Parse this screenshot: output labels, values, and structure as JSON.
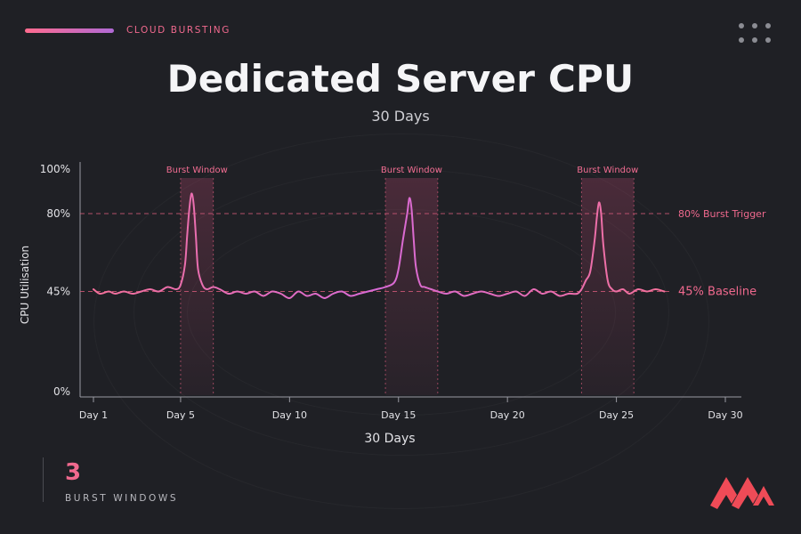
{
  "header": {
    "eyebrow": "CLOUD BURSTING",
    "title": "Dedicated Server CPU",
    "subtitle": "30 Days"
  },
  "stat": {
    "value": "3",
    "label": "BURST WINDOWS"
  },
  "colors": {
    "background": "#1f2025",
    "accent": "#f0698e",
    "accent_alt": "#b06ad6",
    "axis": "#b8b8be",
    "reference_line": "#d85b7b"
  },
  "chart_data": {
    "type": "line",
    "title": "Dedicated Server CPU",
    "subtitle": "30 Days",
    "xlabel": "30 Days",
    "ylabel": "CPU Utilisation",
    "x_tick_labels": [
      "Day 1",
      "Day 5",
      "Day 10",
      "Day 15",
      "Day 20",
      "Day 25",
      "Day 30"
    ],
    "x_tick_values": [
      1,
      5,
      10,
      15,
      20,
      25,
      30
    ],
    "y_tick_labels": [
      "0%",
      "45%",
      "80%",
      "100%"
    ],
    "y_tick_values": [
      0,
      45,
      80,
      100
    ],
    "xlim": [
      1,
      30
    ],
    "ylim": [
      0,
      100
    ],
    "grid": false,
    "reference_lines": [
      {
        "label": "80% Burst Trigger",
        "value": 80
      },
      {
        "label": "45% Baseline",
        "value": 45
      }
    ],
    "burst_windows": [
      {
        "label": "Burst Window",
        "start": 5.0,
        "end": 6.5,
        "peak_day": 5.5,
        "peak_value": 89
      },
      {
        "label": "Burst Window",
        "start": 14.4,
        "end": 16.8,
        "peak_day": 15.6,
        "peak_value": 87
      },
      {
        "label": "Burst Window",
        "start": 23.4,
        "end": 25.8,
        "peak_day": 24.2,
        "peak_value": 85
      }
    ],
    "series": [
      {
        "x": [
          1.0,
          1.3,
          1.7,
          2.0,
          2.4,
          2.8,
          3.2,
          3.6,
          4.0,
          4.4,
          4.8,
          5.0,
          5.2,
          5.3,
          5.4,
          5.5,
          5.6,
          5.7,
          5.8,
          6.0,
          6.2,
          6.5,
          6.8,
          7.2,
          7.6,
          8.0,
          8.4,
          8.8,
          9.2,
          9.6,
          10.0,
          10.4,
          10.8,
          11.2,
          11.6,
          12.0,
          12.4,
          12.8,
          13.2,
          13.6,
          14.0,
          14.4,
          14.8,
          15.0,
          15.2,
          15.4,
          15.5,
          15.6,
          15.7,
          15.8,
          16.0,
          16.2,
          16.5,
          16.8,
          17.2,
          17.6,
          18.0,
          18.4,
          18.8,
          19.2,
          19.6,
          20.0,
          20.4,
          20.8,
          21.2,
          21.6,
          22.0,
          22.4,
          22.8,
          23.2,
          23.4,
          23.6,
          23.8,
          24.0,
          24.1,
          24.2,
          24.3,
          24.4,
          24.6,
          24.8,
          25.0,
          25.3,
          25.6,
          26.0,
          26.4,
          26.8,
          27.2
        ],
        "values": [
          46,
          44,
          45,
          44,
          45,
          44,
          45,
          46,
          45,
          47,
          46,
          48,
          57,
          70,
          82,
          89,
          84,
          70,
          55,
          48,
          46,
          47,
          46,
          44,
          45,
          44,
          45,
          43,
          45,
          44,
          42,
          45,
          43,
          44,
          42,
          44,
          45,
          43,
          44,
          45,
          46,
          47,
          49,
          55,
          68,
          80,
          87,
          82,
          68,
          56,
          48,
          47,
          46,
          45,
          44,
          45,
          43,
          44,
          45,
          44,
          43,
          44,
          45,
          43,
          46,
          44,
          45,
          43,
          44,
          44,
          46,
          50,
          54,
          68,
          78,
          85,
          80,
          66,
          50,
          46,
          45,
          46,
          44,
          46,
          45,
          46,
          45
        ]
      }
    ]
  }
}
